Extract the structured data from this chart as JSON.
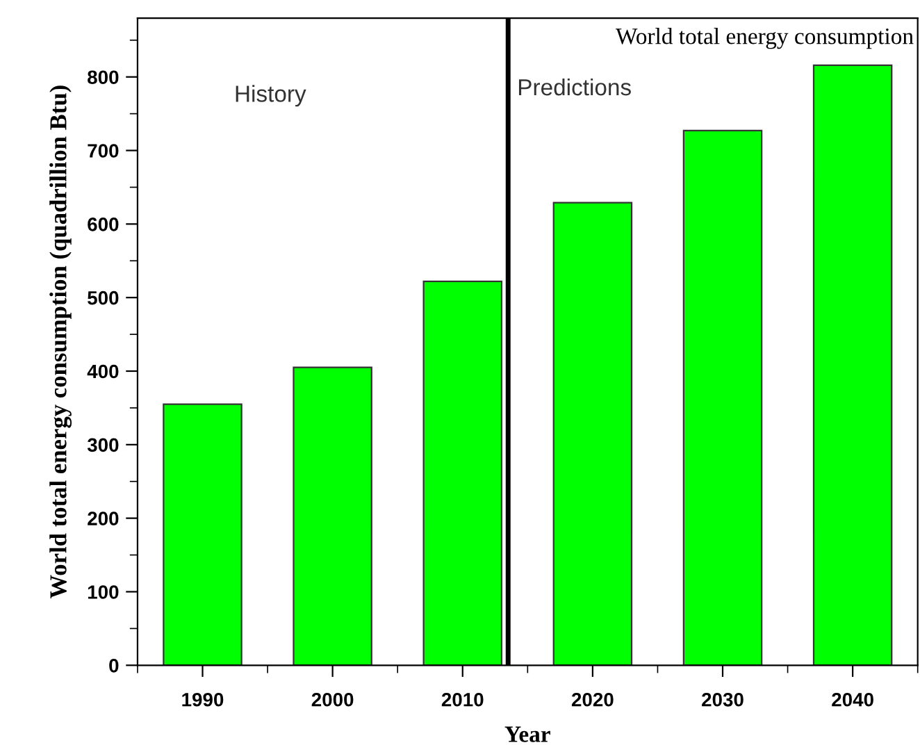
{
  "chart_data": {
    "type": "bar",
    "title": "World total energy consumption",
    "xlabel": "Year",
    "ylabel": "World total energy consumption (quadrillion Btu)",
    "x": [
      1990,
      2000,
      2010,
      2020,
      2030,
      2040
    ],
    "values": [
      355,
      405,
      522,
      629,
      727,
      816
    ],
    "color": "#00ff00",
    "xlim": [
      1985,
      2045
    ],
    "xticks": [
      1990,
      2000,
      2010,
      2020,
      2030,
      2040
    ],
    "ylim": [
      0,
      880
    ],
    "yticks": [
      0,
      100,
      200,
      300,
      400,
      500,
      600,
      700,
      800
    ],
    "ref_lines": [
      {
        "axis": "x",
        "value": 2013.5,
        "color": "#000000"
      }
    ],
    "annotations": [
      "History",
      "Predictions"
    ],
    "grid": false,
    "legend": false
  }
}
